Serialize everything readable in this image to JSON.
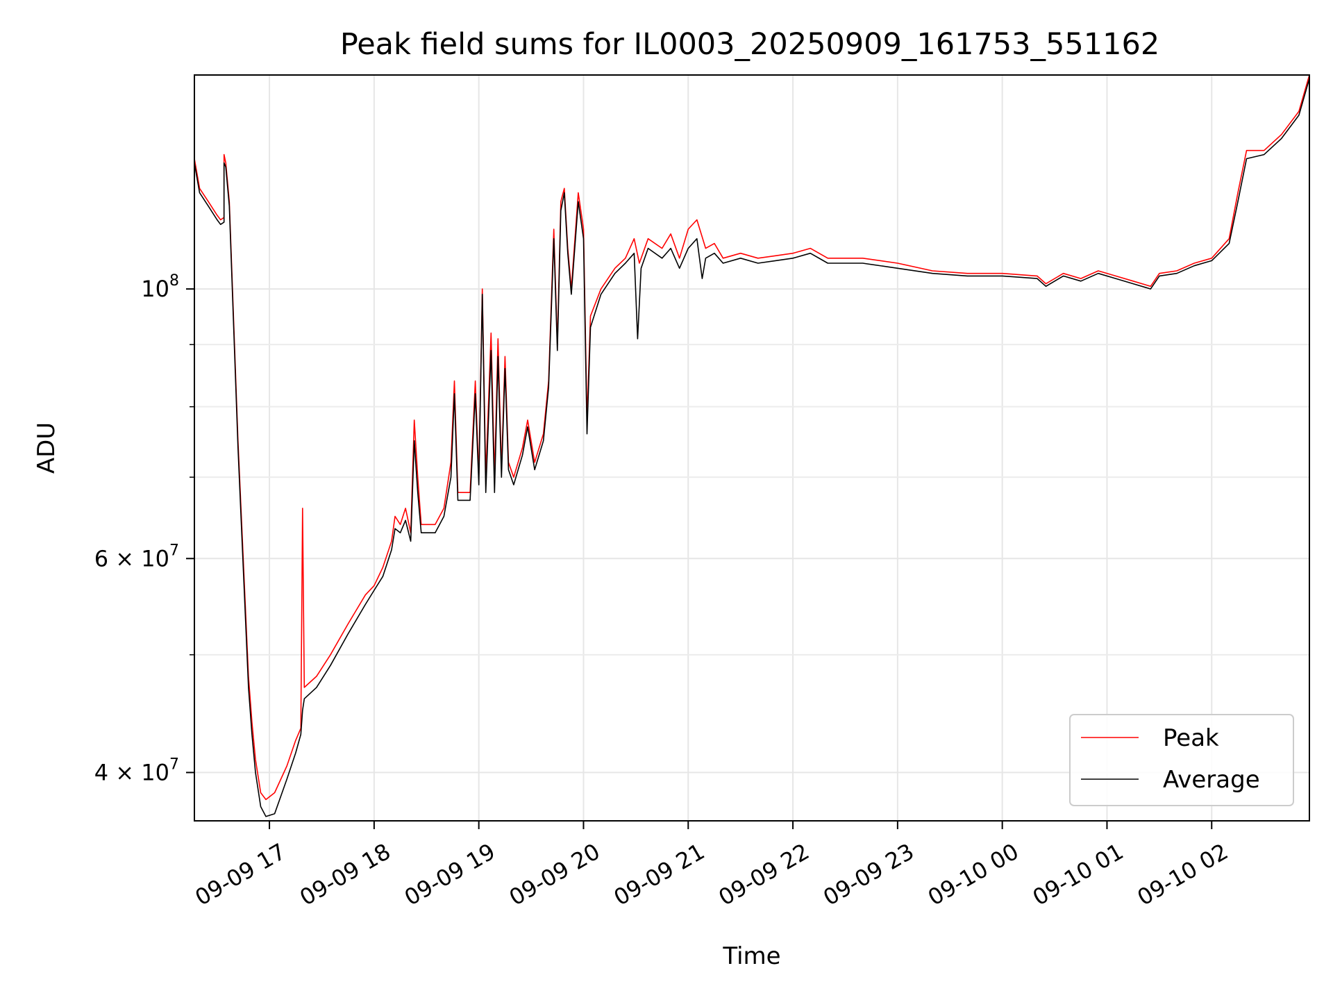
{
  "chart_data": {
    "type": "line",
    "title": "Peak field sums for IL0003_20250909_161753_551162",
    "xlabel": "Time",
    "ylabel": "ADU",
    "yscale": "log",
    "xlim": [
      "2025-09-09 16:17",
      "2025-09-10 02:56"
    ],
    "ylim": [
      36500000,
      150000000
    ],
    "grid": true,
    "legend_position": "lower-right",
    "colors": {
      "Peak": "#ff0000",
      "Average": "#000000"
    },
    "x_ticks": [
      {
        "t": "2025-09-09 17:00",
        "label": "09-09 17"
      },
      {
        "t": "2025-09-09 18:00",
        "label": "09-09 18"
      },
      {
        "t": "2025-09-09 19:00",
        "label": "09-09 19"
      },
      {
        "t": "2025-09-09 20:00",
        "label": "09-09 20"
      },
      {
        "t": "2025-09-09 21:00",
        "label": "09-09 21"
      },
      {
        "t": "2025-09-09 22:00",
        "label": "09-09 22"
      },
      {
        "t": "2025-09-09 23:00",
        "label": "09-09 23"
      },
      {
        "t": "2025-09-10 00:00",
        "label": "09-10 00"
      },
      {
        "t": "2025-09-10 01:00",
        "label": "09-10 01"
      },
      {
        "t": "2025-09-10 02:00",
        "label": "09-10 02"
      }
    ],
    "y_major_ticks": [
      {
        "value": 40000000,
        "base": "4 × 10",
        "exp": "7"
      },
      {
        "value": 60000000,
        "base": "6 × 10",
        "exp": "7"
      },
      {
        "value": 100000000,
        "base": "10",
        "exp": "8"
      }
    ],
    "y_minor_ticks": [
      50000000,
      70000000,
      80000000,
      90000000
    ],
    "series": [
      {
        "name": "Peak",
        "points": [
          [
            "2025-09-09 16:17",
            128000000
          ],
          [
            "2025-09-09 16:20",
            121000000
          ],
          [
            "2025-09-09 16:25",
            118000000
          ],
          [
            "2025-09-09 16:30",
            115000000
          ],
          [
            "2025-09-09 16:32",
            114000000
          ],
          [
            "2025-09-09 16:34",
            114500000
          ],
          [
            "2025-09-09 16:34",
            129000000
          ],
          [
            "2025-09-09 16:35",
            127000000
          ],
          [
            "2025-09-09 16:37",
            118000000
          ],
          [
            "2025-09-09 16:42",
            75000000
          ],
          [
            "2025-09-09 16:48",
            48000000
          ],
          [
            "2025-09-09 16:50",
            44000000
          ],
          [
            "2025-09-09 16:52",
            41000000
          ],
          [
            "2025-09-09 16:55",
            38500000
          ],
          [
            "2025-09-09 16:58",
            38000000
          ],
          [
            "2025-09-09 17:03",
            38500000
          ],
          [
            "2025-09-09 17:10",
            40500000
          ],
          [
            "2025-09-09 17:15",
            42500000
          ],
          [
            "2025-09-09 17:18",
            43500000
          ],
          [
            "2025-09-09 17:19",
            66000000
          ],
          [
            "2025-09-09 17:20",
            47000000
          ],
          [
            "2025-09-09 17:27",
            48000000
          ],
          [
            "2025-09-09 17:35",
            50000000
          ],
          [
            "2025-09-09 17:45",
            53000000
          ],
          [
            "2025-09-09 17:55",
            56000000
          ],
          [
            "2025-09-09 18:00",
            57000000
          ],
          [
            "2025-09-09 18:05",
            59000000
          ],
          [
            "2025-09-09 18:10",
            62000000
          ],
          [
            "2025-09-09 18:12",
            65000000
          ],
          [
            "2025-09-09 18:15",
            64000000
          ],
          [
            "2025-09-09 18:18",
            66000000
          ],
          [
            "2025-09-09 18:21",
            63000000
          ],
          [
            "2025-09-09 18:23",
            78000000
          ],
          [
            "2025-09-09 18:25",
            70000000
          ],
          [
            "2025-09-09 18:27",
            64000000
          ],
          [
            "2025-09-09 18:35",
            64000000
          ],
          [
            "2025-09-09 18:40",
            66000000
          ],
          [
            "2025-09-09 18:44",
            72000000
          ],
          [
            "2025-09-09 18:46",
            84000000
          ],
          [
            "2025-09-09 18:48",
            68000000
          ],
          [
            "2025-09-09 18:55",
            68000000
          ],
          [
            "2025-09-09 18:58",
            84000000
          ],
          [
            "2025-09-09 19:00",
            70000000
          ],
          [
            "2025-09-09 19:02",
            100000000
          ],
          [
            "2025-09-09 19:04",
            70000000
          ],
          [
            "2025-09-09 19:07",
            92000000
          ],
          [
            "2025-09-09 19:09",
            70000000
          ],
          [
            "2025-09-09 19:11",
            91000000
          ],
          [
            "2025-09-09 19:13",
            71000000
          ],
          [
            "2025-09-09 19:15",
            88000000
          ],
          [
            "2025-09-09 19:17",
            72000000
          ],
          [
            "2025-09-09 19:20",
            70000000
          ],
          [
            "2025-09-09 19:25",
            74000000
          ],
          [
            "2025-09-09 19:28",
            78000000
          ],
          [
            "2025-09-09 19:32",
            72000000
          ],
          [
            "2025-09-09 19:37",
            76000000
          ],
          [
            "2025-09-09 19:40",
            84000000
          ],
          [
            "2025-09-09 19:43",
            112000000
          ],
          [
            "2025-09-09 19:45",
            90000000
          ],
          [
            "2025-09-09 19:47",
            118000000
          ],
          [
            "2025-09-09 19:49",
            121000000
          ],
          [
            "2025-09-09 19:51",
            108000000
          ],
          [
            "2025-09-09 19:53",
            100000000
          ],
          [
            "2025-09-09 19:57",
            120000000
          ],
          [
            "2025-09-09 20:00",
            112000000
          ],
          [
            "2025-09-09 20:02",
            78000000
          ],
          [
            "2025-09-09 20:04",
            95000000
          ],
          [
            "2025-09-09 20:10",
            100000000
          ],
          [
            "2025-09-09 20:18",
            104000000
          ],
          [
            "2025-09-09 20:24",
            106000000
          ],
          [
            "2025-09-09 20:29",
            110000000
          ],
          [
            "2025-09-09 20:32",
            105000000
          ],
          [
            "2025-09-09 20:37",
            110000000
          ],
          [
            "2025-09-09 20:45",
            108000000
          ],
          [
            "2025-09-09 20:50",
            111000000
          ],
          [
            "2025-09-09 20:55",
            106000000
          ],
          [
            "2025-09-09 21:00",
            112000000
          ],
          [
            "2025-09-09 21:05",
            114000000
          ],
          [
            "2025-09-09 21:10",
            108000000
          ],
          [
            "2025-09-09 21:15",
            109000000
          ],
          [
            "2025-09-09 21:20",
            106000000
          ],
          [
            "2025-09-09 21:30",
            107000000
          ],
          [
            "2025-09-09 21:40",
            106000000
          ],
          [
            "2025-09-09 21:50",
            106500000
          ],
          [
            "2025-09-09 22:00",
            107000000
          ],
          [
            "2025-09-09 22:10",
            108000000
          ],
          [
            "2025-09-09 22:20",
            106000000
          ],
          [
            "2025-09-09 22:40",
            106000000
          ],
          [
            "2025-09-09 23:00",
            105000000
          ],
          [
            "2025-09-09 23:20",
            103500000
          ],
          [
            "2025-09-09 23:40",
            103000000
          ],
          [
            "2025-09-10 00:00",
            103000000
          ],
          [
            "2025-09-10 00:20",
            102500000
          ],
          [
            "2025-09-10 00:25",
            101000000
          ],
          [
            "2025-09-10 00:35",
            103000000
          ],
          [
            "2025-09-10 00:45",
            102000000
          ],
          [
            "2025-09-10 00:55",
            103500000
          ],
          [
            "2025-09-10 01:05",
            102500000
          ],
          [
            "2025-09-10 01:15",
            101500000
          ],
          [
            "2025-09-10 01:25",
            100500000
          ],
          [
            "2025-09-10 01:30",
            103000000
          ],
          [
            "2025-09-10 01:40",
            103500000
          ],
          [
            "2025-09-10 01:50",
            105000000
          ],
          [
            "2025-09-10 02:00",
            106000000
          ],
          [
            "2025-09-10 02:10",
            110000000
          ],
          [
            "2025-09-10 02:15",
            120000000
          ],
          [
            "2025-09-10 02:20",
            130000000
          ],
          [
            "2025-09-10 02:30",
            130000000
          ],
          [
            "2025-09-10 02:40",
            134000000
          ],
          [
            "2025-09-10 02:50",
            140000000
          ],
          [
            "2025-09-10 02:56",
            150000000
          ]
        ]
      },
      {
        "name": "Average",
        "points": [
          [
            "2025-09-09 16:17",
            127000000
          ],
          [
            "2025-09-09 16:20",
            120000000
          ],
          [
            "2025-09-09 16:25",
            117000000
          ],
          [
            "2025-09-09 16:30",
            114000000
          ],
          [
            "2025-09-09 16:32",
            113000000
          ],
          [
            "2025-09-09 16:34",
            113500000
          ],
          [
            "2025-09-09 16:34",
            127000000
          ],
          [
            "2025-09-09 16:35",
            126000000
          ],
          [
            "2025-09-09 16:37",
            117000000
          ],
          [
            "2025-09-09 16:42",
            74000000
          ],
          [
            "2025-09-09 16:48",
            47000000
          ],
          [
            "2025-09-09 16:50",
            43000000
          ],
          [
            "2025-09-09 16:52",
            40000000
          ],
          [
            "2025-09-09 16:55",
            37500000
          ],
          [
            "2025-09-09 16:58",
            36800000
          ],
          [
            "2025-09-09 17:03",
            37000000
          ],
          [
            "2025-09-09 17:10",
            39500000
          ],
          [
            "2025-09-09 17:15",
            41500000
          ],
          [
            "2025-09-09 17:18",
            43000000
          ],
          [
            "2025-09-09 17:19",
            45000000
          ],
          [
            "2025-09-09 17:20",
            46000000
          ],
          [
            "2025-09-09 17:27",
            47000000
          ],
          [
            "2025-09-09 17:35",
            49000000
          ],
          [
            "2025-09-09 17:45",
            52000000
          ],
          [
            "2025-09-09 17:55",
            55000000
          ],
          [
            "2025-09-09 18:00",
            56500000
          ],
          [
            "2025-09-09 18:05",
            58000000
          ],
          [
            "2025-09-09 18:10",
            61000000
          ],
          [
            "2025-09-09 18:12",
            63500000
          ],
          [
            "2025-09-09 18:15",
            63000000
          ],
          [
            "2025-09-09 18:18",
            64500000
          ],
          [
            "2025-09-09 18:21",
            62000000
          ],
          [
            "2025-09-09 18:23",
            75000000
          ],
          [
            "2025-09-09 18:25",
            68000000
          ],
          [
            "2025-09-09 18:27",
            63000000
          ],
          [
            "2025-09-09 18:35",
            63000000
          ],
          [
            "2025-09-09 18:40",
            65000000
          ],
          [
            "2025-09-09 18:44",
            70000000
          ],
          [
            "2025-09-09 18:46",
            82000000
          ],
          [
            "2025-09-09 18:48",
            67000000
          ],
          [
            "2025-09-09 18:55",
            67000000
          ],
          [
            "2025-09-09 18:58",
            82000000
          ],
          [
            "2025-09-09 19:00",
            69000000
          ],
          [
            "2025-09-09 19:02",
            99000000
          ],
          [
            "2025-09-09 19:04",
            68000000
          ],
          [
            "2025-09-09 19:07",
            89000000
          ],
          [
            "2025-09-09 19:09",
            68000000
          ],
          [
            "2025-09-09 19:11",
            88000000
          ],
          [
            "2025-09-09 19:13",
            70000000
          ],
          [
            "2025-09-09 19:15",
            86000000
          ],
          [
            "2025-09-09 19:17",
            71000000
          ],
          [
            "2025-09-09 19:20",
            69000000
          ],
          [
            "2025-09-09 19:25",
            73000000
          ],
          [
            "2025-09-09 19:28",
            77000000
          ],
          [
            "2025-09-09 19:32",
            71000000
          ],
          [
            "2025-09-09 19:37",
            75000000
          ],
          [
            "2025-09-09 19:40",
            83000000
          ],
          [
            "2025-09-09 19:43",
            110000000
          ],
          [
            "2025-09-09 19:45",
            89000000
          ],
          [
            "2025-09-09 19:47",
            116000000
          ],
          [
            "2025-09-09 19:49",
            120000000
          ],
          [
            "2025-09-09 19:51",
            107000000
          ],
          [
            "2025-09-09 19:53",
            99000000
          ],
          [
            "2025-09-09 19:57",
            118000000
          ],
          [
            "2025-09-09 20:00",
            110000000
          ],
          [
            "2025-09-09 20:02",
            76000000
          ],
          [
            "2025-09-09 20:04",
            93000000
          ],
          [
            "2025-09-09 20:10",
            99000000
          ],
          [
            "2025-09-09 20:18",
            103000000
          ],
          [
            "2025-09-09 20:24",
            105000000
          ],
          [
            "2025-09-09 20:29",
            107000000
          ],
          [
            "2025-09-09 20:31",
            91000000
          ],
          [
            "2025-09-09 20:33",
            104000000
          ],
          [
            "2025-09-09 20:37",
            108000000
          ],
          [
            "2025-09-09 20:45",
            106000000
          ],
          [
            "2025-09-09 20:50",
            108000000
          ],
          [
            "2025-09-09 20:55",
            104000000
          ],
          [
            "2025-09-09 21:00",
            108000000
          ],
          [
            "2025-09-09 21:05",
            110000000
          ],
          [
            "2025-09-09 21:08",
            102000000
          ],
          [
            "2025-09-09 21:10",
            106000000
          ],
          [
            "2025-09-09 21:15",
            107000000
          ],
          [
            "2025-09-09 21:20",
            105000000
          ],
          [
            "2025-09-09 21:30",
            106000000
          ],
          [
            "2025-09-09 21:40",
            105000000
          ],
          [
            "2025-09-09 21:50",
            105500000
          ],
          [
            "2025-09-09 22:00",
            106000000
          ],
          [
            "2025-09-09 22:10",
            107000000
          ],
          [
            "2025-09-09 22:20",
            105000000
          ],
          [
            "2025-09-09 22:40",
            105000000
          ],
          [
            "2025-09-09 23:00",
            104000000
          ],
          [
            "2025-09-09 23:20",
            103000000
          ],
          [
            "2025-09-09 23:40",
            102500000
          ],
          [
            "2025-09-10 00:00",
            102500000
          ],
          [
            "2025-09-10 00:20",
            102000000
          ],
          [
            "2025-09-10 00:25",
            100500000
          ],
          [
            "2025-09-10 00:35",
            102500000
          ],
          [
            "2025-09-10 00:45",
            101500000
          ],
          [
            "2025-09-10 00:55",
            103000000
          ],
          [
            "2025-09-10 01:05",
            102000000
          ],
          [
            "2025-09-10 01:15",
            101000000
          ],
          [
            "2025-09-10 01:25",
            100000000
          ],
          [
            "2025-09-10 01:30",
            102500000
          ],
          [
            "2025-09-10 01:40",
            103000000
          ],
          [
            "2025-09-10 01:50",
            104500000
          ],
          [
            "2025-09-10 02:00",
            105500000
          ],
          [
            "2025-09-10 02:10",
            109000000
          ],
          [
            "2025-09-10 02:15",
            118000000
          ],
          [
            "2025-09-10 02:20",
            128000000
          ],
          [
            "2025-09-10 02:30",
            129000000
          ],
          [
            "2025-09-10 02:40",
            133000000
          ],
          [
            "2025-09-10 02:50",
            139000000
          ],
          [
            "2025-09-10 02:56",
            149000000
          ]
        ]
      }
    ]
  }
}
